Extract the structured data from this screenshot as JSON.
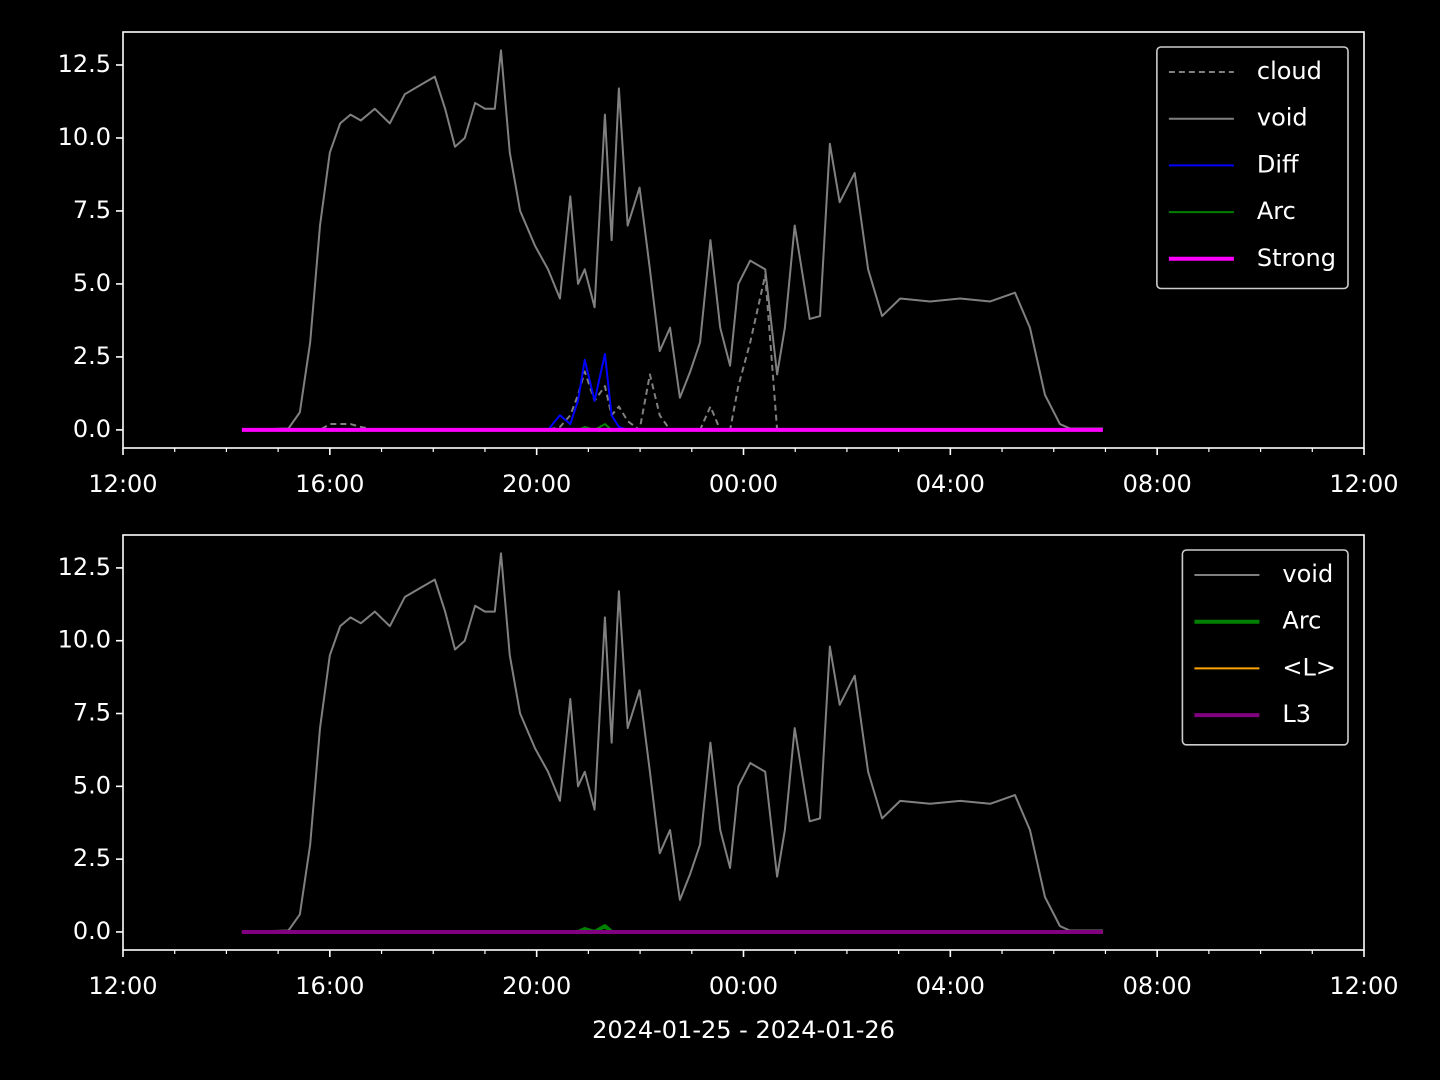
{
  "chart_data": [
    {
      "type": "line",
      "x": [
        14.3,
        15.2,
        15.42,
        15.62,
        15.81,
        16.0,
        16.2,
        16.4,
        16.6,
        16.87,
        17.16,
        17.45,
        17.74,
        18.03,
        18.23,
        18.42,
        18.61,
        18.81,
        19.0,
        19.19,
        19.31,
        19.48,
        19.68,
        19.97,
        20.22,
        20.45,
        20.65,
        20.8,
        20.93,
        21.12,
        21.32,
        21.45,
        21.59,
        21.76,
        21.99,
        22.19,
        22.38,
        22.58,
        22.77,
        22.97,
        23.16,
        23.36,
        23.55,
        23.74,
        23.9,
        24.13,
        24.42,
        24.65,
        24.8,
        24.99,
        25.28,
        25.48,
        25.67,
        25.86,
        26.15,
        26.41,
        26.68,
        27.03,
        27.61,
        28.19,
        28.77,
        29.25,
        29.54,
        29.83,
        30.12,
        30.31,
        30.95
      ],
      "series": [
        {
          "name": "cloud",
          "color": "#808080",
          "style": "dashed",
          "width": 2,
          "values": [
            0,
            0,
            0,
            0,
            0,
            0.2,
            0.2,
            0.2,
            0.1,
            0,
            0,
            0,
            0,
            0,
            0,
            0,
            0,
            0,
            0,
            0,
            0,
            0,
            0,
            0,
            0,
            0.1,
            0.5,
            1.2,
            2.0,
            1.0,
            1.5,
            0.5,
            0.8,
            0.3,
            0,
            1.9,
            0.5,
            0,
            0,
            0,
            0,
            0.8,
            0,
            0,
            1.5,
            3.0,
            5.3,
            0,
            0,
            0,
            0,
            0,
            0,
            0,
            0,
            0,
            0,
            0,
            0,
            0,
            0,
            0,
            0,
            0,
            0,
            0,
            0
          ]
        },
        {
          "name": "void",
          "color": "#808080",
          "width": 2,
          "values": [
            0,
            0.05,
            0.6,
            3,
            7,
            9.5,
            10.5,
            10.8,
            10.6,
            11,
            10.5,
            11.5,
            11.8,
            12.1,
            11,
            9.7,
            10,
            11.2,
            11,
            11,
            13,
            9.5,
            7.5,
            6.3,
            5.5,
            4.5,
            8,
            5,
            5.5,
            4.2,
            10.8,
            6.5,
            11.7,
            7,
            8.3,
            5.5,
            2.7,
            3.5,
            1.1,
            2,
            3,
            6.5,
            3.5,
            2.2,
            5,
            5.8,
            5.5,
            1.9,
            3.5,
            7,
            3.8,
            3.9,
            9.8,
            7.8,
            8.8,
            5.5,
            3.9,
            4.5,
            4.4,
            4.5,
            4.4,
            4.7,
            3.5,
            1.2,
            0.2,
            0.05,
            0.05
          ]
        },
        {
          "name": "Diff",
          "color": "#0000ff",
          "width": 2,
          "values": [
            0,
            0,
            0,
            0,
            0,
            0,
            0,
            0,
            0,
            0,
            0,
            0,
            0,
            0,
            0,
            0,
            0,
            0,
            0,
            0,
            0,
            0,
            0,
            0,
            0,
            0.5,
            0.2,
            1.0,
            2.4,
            1.0,
            2.6,
            0.5,
            0.1,
            0,
            0,
            0,
            0,
            0,
            0,
            0,
            0,
            0,
            0,
            0,
            0,
            0,
            0,
            0,
            0,
            0,
            0,
            0,
            0,
            0,
            0,
            0,
            0,
            0,
            0,
            0,
            0,
            0,
            0,
            0,
            0,
            0,
            0
          ]
        },
        {
          "name": "Arc",
          "color": "#008000",
          "width": 2,
          "values": [
            0,
            0,
            0,
            0,
            0,
            0,
            0,
            0,
            0,
            0,
            0,
            0,
            0,
            0,
            0,
            0,
            0,
            0,
            0,
            0,
            0,
            0,
            0,
            0,
            0,
            0,
            0,
            0,
            0.1,
            0,
            0.2,
            0,
            0,
            0,
            0,
            0,
            0,
            0,
            0,
            0,
            0,
            0,
            0,
            0,
            0,
            0,
            0,
            0,
            0,
            0,
            0,
            0,
            0,
            0,
            0,
            0,
            0,
            0,
            0,
            0,
            0,
            0,
            0,
            0,
            0,
            0,
            0
          ]
        },
        {
          "name": "Strong",
          "color": "#ff00ff",
          "width": 4,
          "values": [
            0,
            0,
            0,
            0,
            0,
            0,
            0,
            0,
            0,
            0,
            0,
            0,
            0,
            0,
            0,
            0,
            0,
            0,
            0,
            0,
            0,
            0,
            0,
            0,
            0,
            0,
            0,
            0,
            0,
            0,
            0,
            0,
            0,
            0,
            0,
            0,
            0,
            0,
            0,
            0,
            0,
            0,
            0,
            0,
            0,
            0,
            0,
            0,
            0,
            0,
            0,
            0,
            0,
            0,
            0,
            0,
            0,
            0,
            0,
            0,
            0,
            0,
            0,
            0,
            0,
            0,
            0
          ]
        }
      ],
      "xlim": [
        12,
        36
      ],
      "xticks": [
        {
          "value": 12,
          "label": "12:00"
        },
        {
          "value": 16,
          "label": "16:00"
        },
        {
          "value": 20,
          "label": "20:00"
        },
        {
          "value": 24,
          "label": "00:00"
        },
        {
          "value": 28,
          "label": "04:00"
        },
        {
          "value": 32,
          "label": "08:00"
        },
        {
          "value": 36,
          "label": "12:00"
        }
      ],
      "xminorticks": [
        13,
        14,
        15,
        17,
        18,
        19,
        21,
        22,
        23,
        25,
        26,
        27,
        29,
        30,
        31,
        33,
        34,
        35
      ],
      "ylim": [
        -0.62,
        13.63
      ],
      "yticks": [
        {
          "value": 0,
          "label": "0.0"
        },
        2.5,
        {
          "value": 5,
          "label": "5.0"
        },
        7.5,
        {
          "value": 10,
          "label": "10.0"
        },
        12.5
      ],
      "legend": "upper right"
    },
    {
      "type": "line",
      "x": [
        14.3,
        15.2,
        15.42,
        15.62,
        15.81,
        16.0,
        16.2,
        16.4,
        16.6,
        16.87,
        17.16,
        17.45,
        17.74,
        18.03,
        18.23,
        18.42,
        18.61,
        18.81,
        19.0,
        19.19,
        19.31,
        19.48,
        19.68,
        19.97,
        20.22,
        20.45,
        20.65,
        20.8,
        20.93,
        21.12,
        21.32,
        21.45,
        21.59,
        21.76,
        21.99,
        22.19,
        22.38,
        22.58,
        22.77,
        22.97,
        23.16,
        23.36,
        23.55,
        23.74,
        23.9,
        24.13,
        24.42,
        24.65,
        24.8,
        24.99,
        25.28,
        25.48,
        25.67,
        25.86,
        26.15,
        26.41,
        26.68,
        27.03,
        27.61,
        28.19,
        28.77,
        29.25,
        29.54,
        29.83,
        30.12,
        30.31,
        30.95
      ],
      "series": [
        {
          "name": "void",
          "color": "#808080",
          "width": 2,
          "values": [
            0,
            0.05,
            0.6,
            3,
            7,
            9.5,
            10.5,
            10.8,
            10.6,
            11,
            10.5,
            11.5,
            11.8,
            12.1,
            11,
            9.7,
            10,
            11.2,
            11,
            11,
            13,
            9.5,
            7.5,
            6.3,
            5.5,
            4.5,
            8,
            5,
            5.5,
            4.2,
            10.8,
            6.5,
            11.7,
            7,
            8.3,
            5.5,
            2.7,
            3.5,
            1.1,
            2,
            3,
            6.5,
            3.5,
            2.2,
            5,
            5.8,
            5.5,
            1.9,
            3.5,
            7,
            3.8,
            3.9,
            9.8,
            7.8,
            8.8,
            5.5,
            3.9,
            4.5,
            4.4,
            4.5,
            4.4,
            4.7,
            3.5,
            1.2,
            0.2,
            0.05,
            0.05
          ]
        },
        {
          "name": "Arc",
          "color": "#008000",
          "width": 4,
          "values": [
            0,
            0,
            0,
            0,
            0,
            0,
            0,
            0,
            0,
            0,
            0,
            0,
            0,
            0,
            0,
            0,
            0,
            0,
            0,
            0,
            0,
            0,
            0,
            0,
            0,
            0,
            0,
            0,
            0.1,
            0,
            0.2,
            0,
            0,
            0,
            0,
            0,
            0,
            0,
            0,
            0,
            0,
            0,
            0,
            0,
            0,
            0,
            0,
            0,
            0,
            0,
            0,
            0,
            0,
            0,
            0,
            0,
            0,
            0,
            0,
            0,
            0,
            0,
            0,
            0,
            0,
            0,
            0
          ]
        },
        {
          "name": "<L>",
          "color": "#ffa500",
          "width": 2,
          "values": [
            0,
            0,
            0,
            0,
            0,
            0,
            0,
            0,
            0,
            0,
            0,
            0,
            0,
            0,
            0,
            0,
            0,
            0,
            0,
            0,
            0,
            0,
            0,
            0,
            0,
            0,
            0,
            0,
            0,
            0,
            0,
            0,
            0,
            0,
            0,
            0,
            0,
            0,
            0,
            0,
            0,
            0,
            0,
            0,
            0,
            0,
            0,
            0,
            0,
            0,
            0,
            0,
            0,
            0,
            0,
            0,
            0,
            0,
            0,
            0,
            0,
            0,
            0,
            0,
            0,
            0,
            0
          ]
        },
        {
          "name": "L3",
          "color": "#800080",
          "width": 4,
          "values": [
            0,
            0,
            0,
            0,
            0,
            0,
            0,
            0,
            0,
            0,
            0,
            0,
            0,
            0,
            0,
            0,
            0,
            0,
            0,
            0,
            0,
            0,
            0,
            0,
            0,
            0,
            0,
            0,
            0,
            0,
            0,
            0,
            0,
            0,
            0,
            0,
            0,
            0,
            0,
            0,
            0,
            0,
            0,
            0,
            0,
            0,
            0,
            0,
            0,
            0,
            0,
            0,
            0,
            0,
            0,
            0,
            0,
            0,
            0,
            0,
            0,
            0,
            0,
            0,
            0,
            0,
            0
          ]
        }
      ],
      "xlabel": "2024-01-25 - 2024-01-26",
      "xlim": [
        12,
        36
      ],
      "xticks": [
        {
          "value": 12,
          "label": "12:00"
        },
        {
          "value": 16,
          "label": "16:00"
        },
        {
          "value": 20,
          "label": "20:00"
        },
        {
          "value": 24,
          "label": "00:00"
        },
        {
          "value": 28,
          "label": "04:00"
        },
        {
          "value": 32,
          "label": "08:00"
        },
        {
          "value": 36,
          "label": "12:00"
        }
      ],
      "xminorticks": [
        13,
        14,
        15,
        17,
        18,
        19,
        21,
        22,
        23,
        25,
        26,
        27,
        29,
        30,
        31,
        33,
        34,
        35
      ],
      "ylim": [
        -0.62,
        13.63
      ],
      "yticks": [
        {
          "value": 0,
          "label": "0.0"
        },
        2.5,
        {
          "value": 5,
          "label": "5.0"
        },
        7.5,
        {
          "value": 10,
          "label": "10.0"
        },
        12.5
      ],
      "legend": "upper right"
    }
  ]
}
